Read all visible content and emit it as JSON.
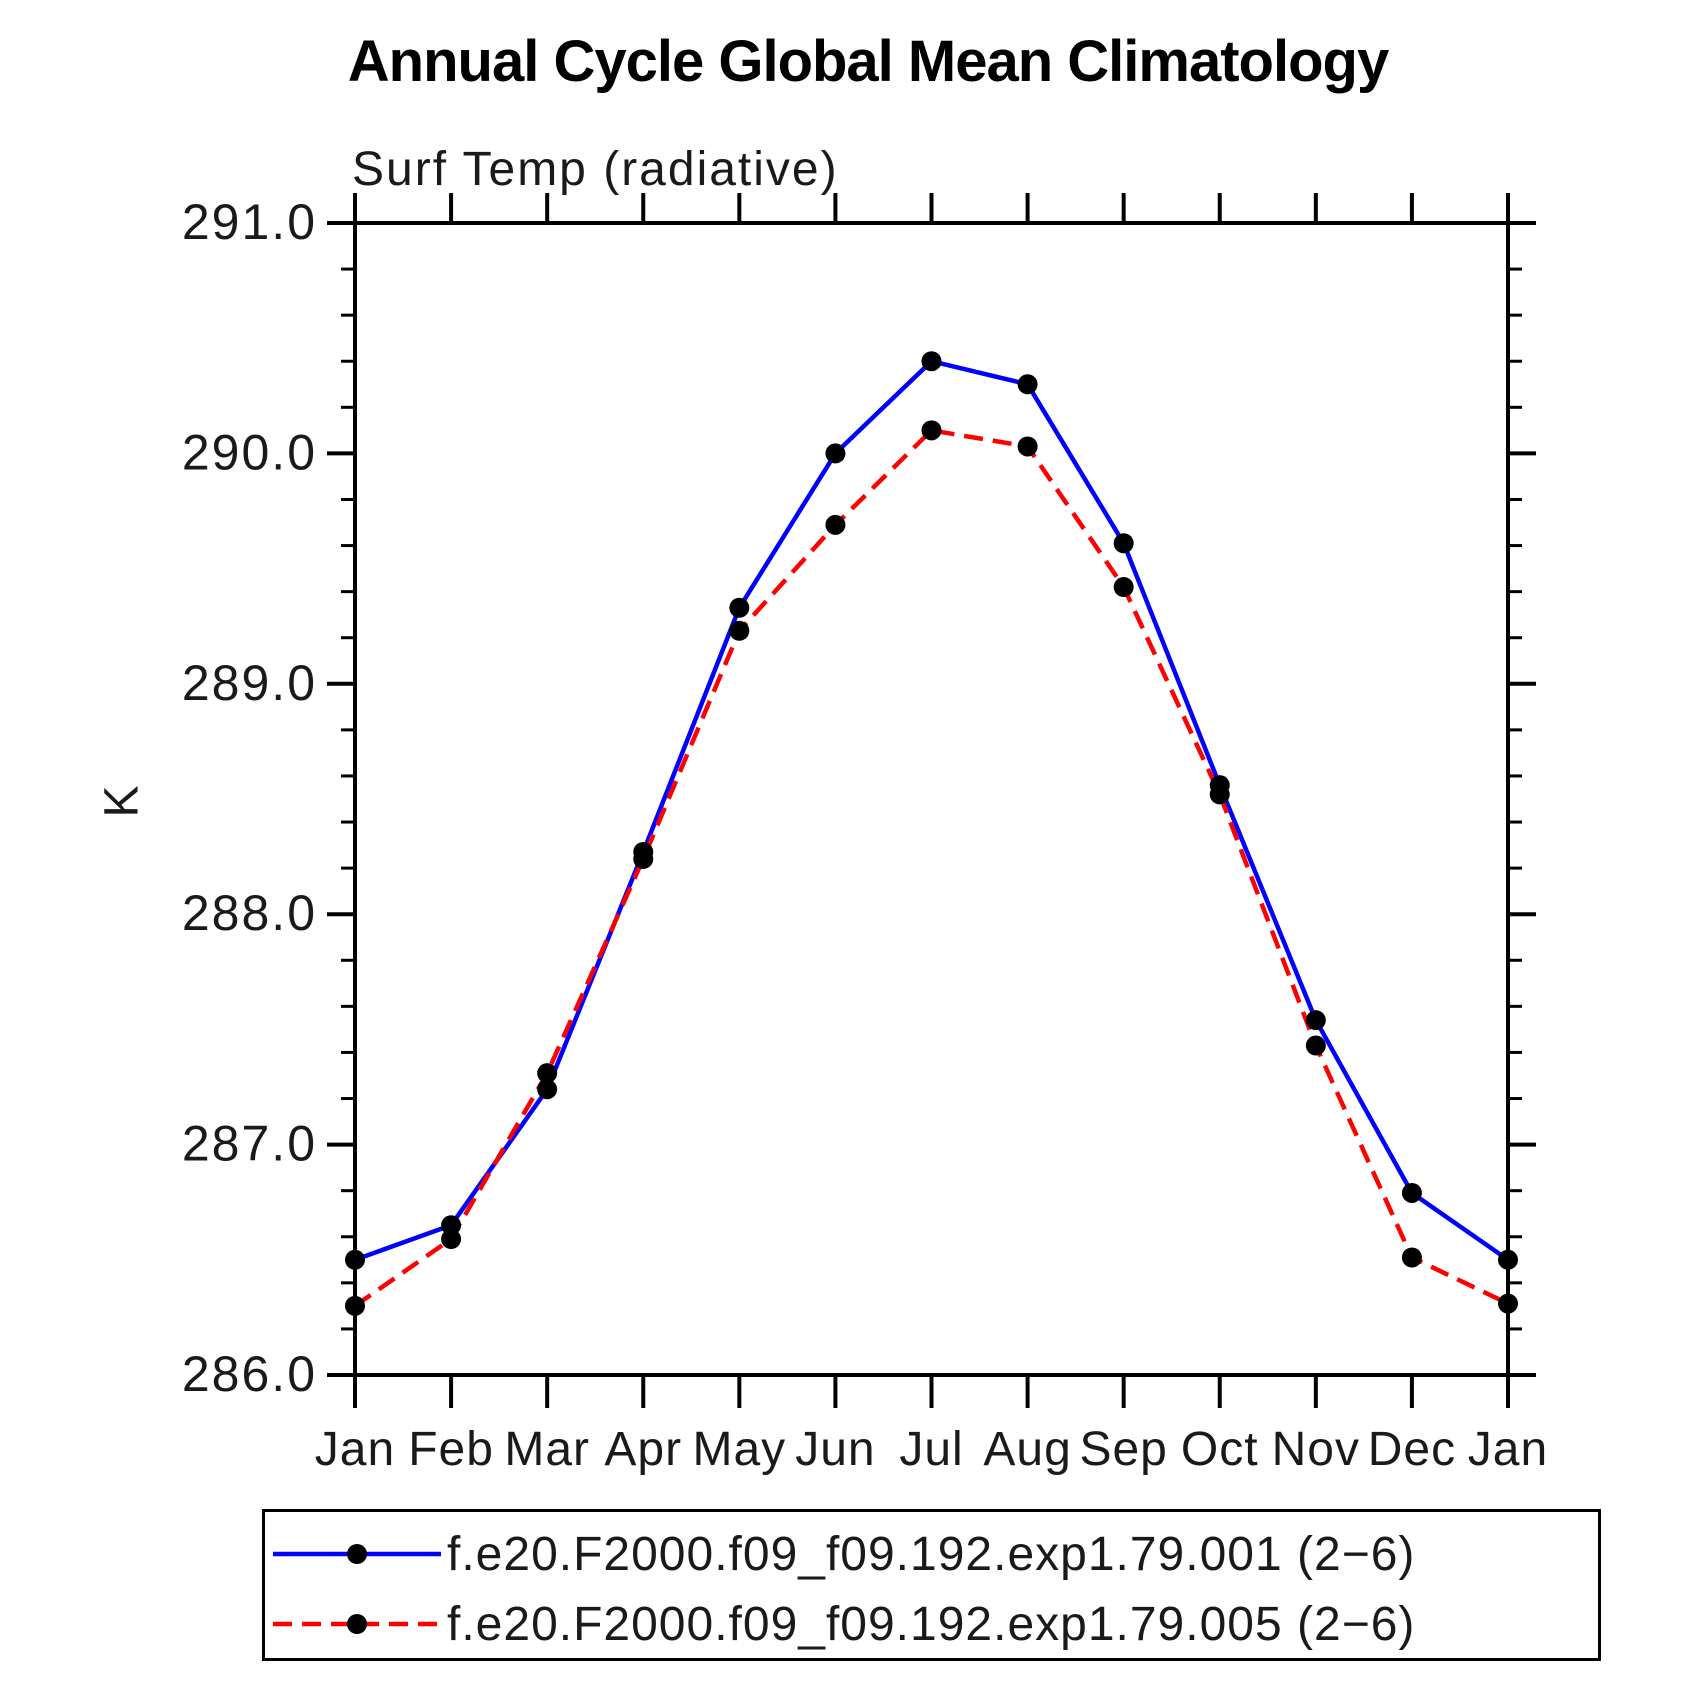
{
  "figure": {
    "title": "Annual Cycle Global Mean Climatology",
    "subtitle": "Surf Temp (radiative)",
    "y_axis_label": "K"
  },
  "chart_data": {
    "type": "line",
    "title": "Annual Cycle Global Mean Climatology",
    "subtitle": "Surf Temp (radiative)",
    "xlabel": "",
    "ylabel": "K",
    "ylim": [
      286.0,
      291.0
    ],
    "ytick_interval": 1.0,
    "yminor_interval": 0.2,
    "ytick_labels": [
      "286.0",
      "287.0",
      "288.0",
      "289.0",
      "290.0",
      "291.0"
    ],
    "categories": [
      "Jan",
      "Feb",
      "Mar",
      "Apr",
      "May",
      "Jun",
      "Jul",
      "Aug",
      "Sep",
      "Oct",
      "Nov",
      "Dec",
      "Jan"
    ],
    "grid": false,
    "legend_position": "bottom",
    "axis_color": "#000000",
    "marker": "filled-circle",
    "marker_color": "#000000",
    "series": [
      {
        "name": "f.e20.F2000.f09_f09.192.exp1.79.001 (2−6)",
        "color": "#0000ff",
        "style": "solid",
        "values": [
          286.5,
          286.65,
          287.24,
          288.27,
          289.33,
          290.0,
          290.4,
          290.3,
          289.61,
          288.56,
          287.54,
          286.79,
          286.5
        ]
      },
      {
        "name": "f.e20.F2000.f09_f09.192.exp1.79.005 (2−6)",
        "color": "#ff0000",
        "style": "dashed",
        "values": [
          286.3,
          286.59,
          287.31,
          288.24,
          289.23,
          289.69,
          290.1,
          290.03,
          289.42,
          288.52,
          287.43,
          286.51,
          286.31
        ]
      }
    ]
  },
  "legend": {
    "entries": [
      {
        "label": "f.e20.F2000.f09_f09.192.exp1.79.001 (2−6)"
      },
      {
        "label": "f.e20.F2000.f09_f09.192.exp1.79.005 (2−6)"
      }
    ]
  }
}
